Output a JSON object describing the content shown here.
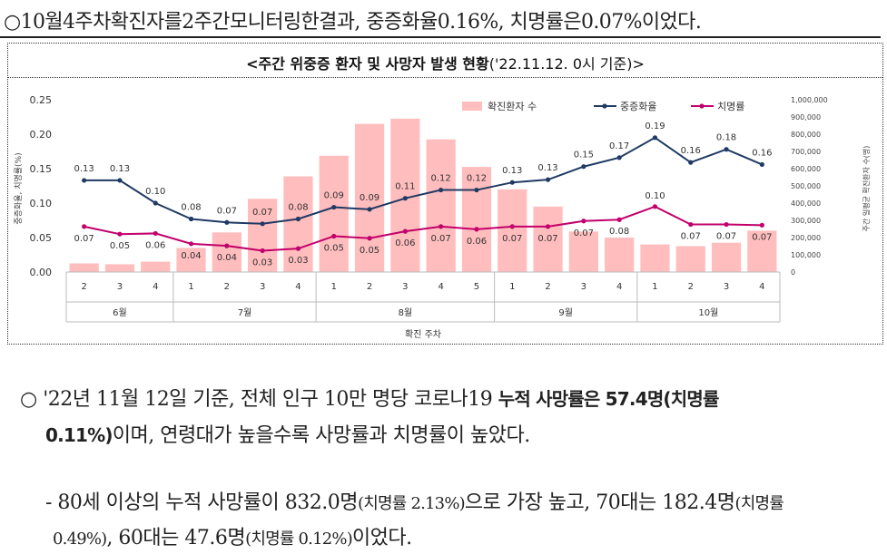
{
  "intro_line": "○10월4주차확진자를2주간모니터링한결과, 중증화율0.16%, 치명률은0.07%이었다.",
  "chart_title": {
    "main": "<주간 위중증 환자 및 사망자 발생 현황",
    "date": "('22.11.12. 0시 기준)>"
  },
  "chart_data": {
    "type": "bar+line",
    "x_title": "확진 주차",
    "y_left_label": "중증화율, 치명률(%)",
    "y_right_label": "주간 일평균 확진환자 수(명)",
    "y_left_ticks": [
      "0.00",
      "0.05",
      "0.10",
      "0.15",
      "0.20",
      "0.25"
    ],
    "y_left_range": [
      0,
      0.25
    ],
    "y_right_ticks": [
      "0",
      "100,000",
      "200,000",
      "300,000",
      "400,000",
      "500,000",
      "600,000",
      "700,000",
      "800,000",
      "900,000",
      "1,000,000"
    ],
    "y_right_range": [
      0,
      1000000
    ],
    "legend": {
      "bars": "확진환자 수",
      "severe": "중증화율",
      "fatality": "치명률"
    },
    "colors": {
      "bars": "#ffbdbd",
      "severe": "#1f3a64",
      "fatality": "#c2006b"
    },
    "weeks": [
      "2",
      "3",
      "4",
      "1",
      "2",
      "3",
      "4",
      "1",
      "2",
      "3",
      "4",
      "5",
      "1",
      "2",
      "3",
      "4",
      "1",
      "2",
      "3",
      "4"
    ],
    "months": [
      {
        "label": "6월",
        "count": 3
      },
      {
        "label": "7월",
        "count": 4
      },
      {
        "label": "8월",
        "count": 5
      },
      {
        "label": "9월",
        "count": 4
      },
      {
        "label": "10월",
        "count": 4
      }
    ],
    "cases": [
      50000,
      45000,
      60000,
      140000,
      230000,
      425000,
      555000,
      675000,
      860000,
      890000,
      770000,
      610000,
      480000,
      380000,
      235000,
      200000,
      160000,
      150000,
      170000,
      240000
    ],
    "severe_rate": [
      0.13,
      0.13,
      0.1,
      0.08,
      0.07,
      0.07,
      0.08,
      0.09,
      0.09,
      0.11,
      0.12,
      0.12,
      0.13,
      0.13,
      0.15,
      0.17,
      0.19,
      0.16,
      0.18,
      0.16
    ],
    "severe_pos": [
      0.133,
      0.133,
      0.1,
      0.077,
      0.072,
      0.07,
      0.077,
      0.094,
      0.091,
      0.107,
      0.119,
      0.119,
      0.13,
      0.134,
      0.153,
      0.166,
      0.195,
      0.159,
      0.178,
      0.156
    ],
    "fatality_rate": [
      0.07,
      0.05,
      0.06,
      0.04,
      0.04,
      0.03,
      0.03,
      0.05,
      0.05,
      0.06,
      0.07,
      0.06,
      0.07,
      0.07,
      0.07,
      0.08,
      0.1,
      0.07,
      0.07,
      0.07
    ],
    "fatality_pos": [
      0.066,
      0.055,
      0.056,
      0.041,
      0.038,
      0.031,
      0.034,
      0.052,
      0.049,
      0.059,
      0.066,
      0.062,
      0.066,
      0.066,
      0.074,
      0.076,
      0.095,
      0.069,
      0.069,
      0.068
    ]
  },
  "paragraph1": {
    "prefix": "○ '22년 11월 12일 기준, 전체 인구 10만 명당 코로나19 ",
    "bold1": "누적 사망률은 57.4명(치명률",
    "bold2": "0.11%)",
    "suffix": "이며, 연령대가 높을수록 사망률과 치명률이 높았다."
  },
  "paragraph2": {
    "line1_a": "- 80세 이상의 누적 사망률이 832.0명",
    "line1_b": "(치명률 2.13%)",
    "line1_c": "으로 가장 높고, 70대는 182.4명",
    "line1_d": "(치명률",
    "line2_a": "0.49%)",
    "line2_b": ", 60대는 47.6명",
    "line2_c": "(치명률 0.12%)",
    "line2_d": "이었다."
  }
}
